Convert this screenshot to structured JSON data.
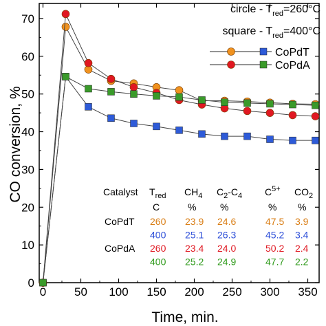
{
  "chart_data": {
    "type": "line",
    "xlabel": "Time,   min.",
    "ylabel": "CO conversion,   %",
    "xlim": [
      -5,
      365
    ],
    "ylim": [
      0,
      74
    ],
    "xticks": [
      0,
      50,
      100,
      150,
      200,
      250,
      300,
      350
    ],
    "yticks": [
      0,
      10,
      20,
      30,
      40,
      50,
      60,
      70
    ],
    "grid": false,
    "legend": {
      "placement": "top-right",
      "line1": {
        "pre": "circle - T",
        "sub": "red",
        "post": "=260°C"
      },
      "line2": {
        "pre": "square - T",
        "sub": "red",
        "post": "=400°C"
      },
      "entries": [
        {
          "label": "CoPdT",
          "line_color": "#555555",
          "circle_color": "#f0921f",
          "square_color": "#2e5bd8"
        },
        {
          "label": "CoPdA",
          "line_color": "#555555",
          "circle_color": "#e01822",
          "square_color": "#3a9a2a"
        }
      ]
    },
    "x": [
      0,
      30,
      60,
      90,
      120,
      150,
      180,
      210,
      240,
      270,
      300,
      330,
      360
    ],
    "series": [
      {
        "name": "CoPdT",
        "marker": "circle",
        "color": "#f0921f",
        "values": [
          0,
          67.8,
          56.5,
          53.5,
          52.8,
          51.8,
          51.0,
          48.2,
          48.2,
          48.0,
          47.7,
          47.4,
          47.3
        ]
      },
      {
        "name": "CoPdT",
        "marker": "square",
        "color": "#2e5bd8",
        "values": [
          0,
          54.6,
          46.6,
          43.6,
          42.2,
          41.4,
          40.4,
          39.4,
          38.8,
          38.8,
          38.0,
          37.7,
          37.7
        ]
      },
      {
        "name": "CoPdA",
        "marker": "circle",
        "color": "#e01822",
        "values": [
          0,
          71.2,
          58.2,
          54.0,
          51.8,
          50.3,
          48.4,
          47.2,
          46.2,
          45.5,
          45.0,
          44.4,
          44.1
        ]
      },
      {
        "name": "CoPdA",
        "marker": "square",
        "color": "#3a9a2a",
        "values": [
          0,
          54.6,
          51.4,
          50.6,
          50.0,
          49.5,
          49.2,
          48.4,
          47.8,
          47.6,
          47.4,
          47.2,
          47.0
        ]
      }
    ],
    "table": {
      "headers": [
        {
          "main": "Catalyst",
          "sub": ""
        },
        {
          "main": "T",
          "sub": "red"
        },
        {
          "main": "CH",
          "sub": "4"
        },
        {
          "main": "C",
          "sub": "2",
          "mid": "-C",
          "sub2": "4"
        },
        {
          "main": "C",
          "sup": "5+"
        },
        {
          "main": "CO",
          "sub": "2"
        }
      ],
      "units": [
        "",
        "C",
        "%",
        "%",
        "%",
        "%"
      ],
      "rows": [
        {
          "catalyst": "CoPdT",
          "color": "#d97d14",
          "cells": [
            "260",
            "23.9",
            "24.6",
            "47.5",
            "3.9"
          ]
        },
        {
          "catalyst": "",
          "color": "#2e4fd8",
          "cells": [
            "400",
            "25.1",
            "26.3",
            "45.2",
            "3.4"
          ]
        },
        {
          "catalyst": "CoPdA",
          "color": "#e01822",
          "cells": [
            "260",
            "23.4",
            "24.0",
            "50.2",
            "2.4"
          ]
        },
        {
          "catalyst": "",
          "color": "#2e9a1a",
          "cells": [
            "400",
            "25.2",
            "24.9",
            "47.7",
            "2.2"
          ]
        }
      ]
    }
  }
}
